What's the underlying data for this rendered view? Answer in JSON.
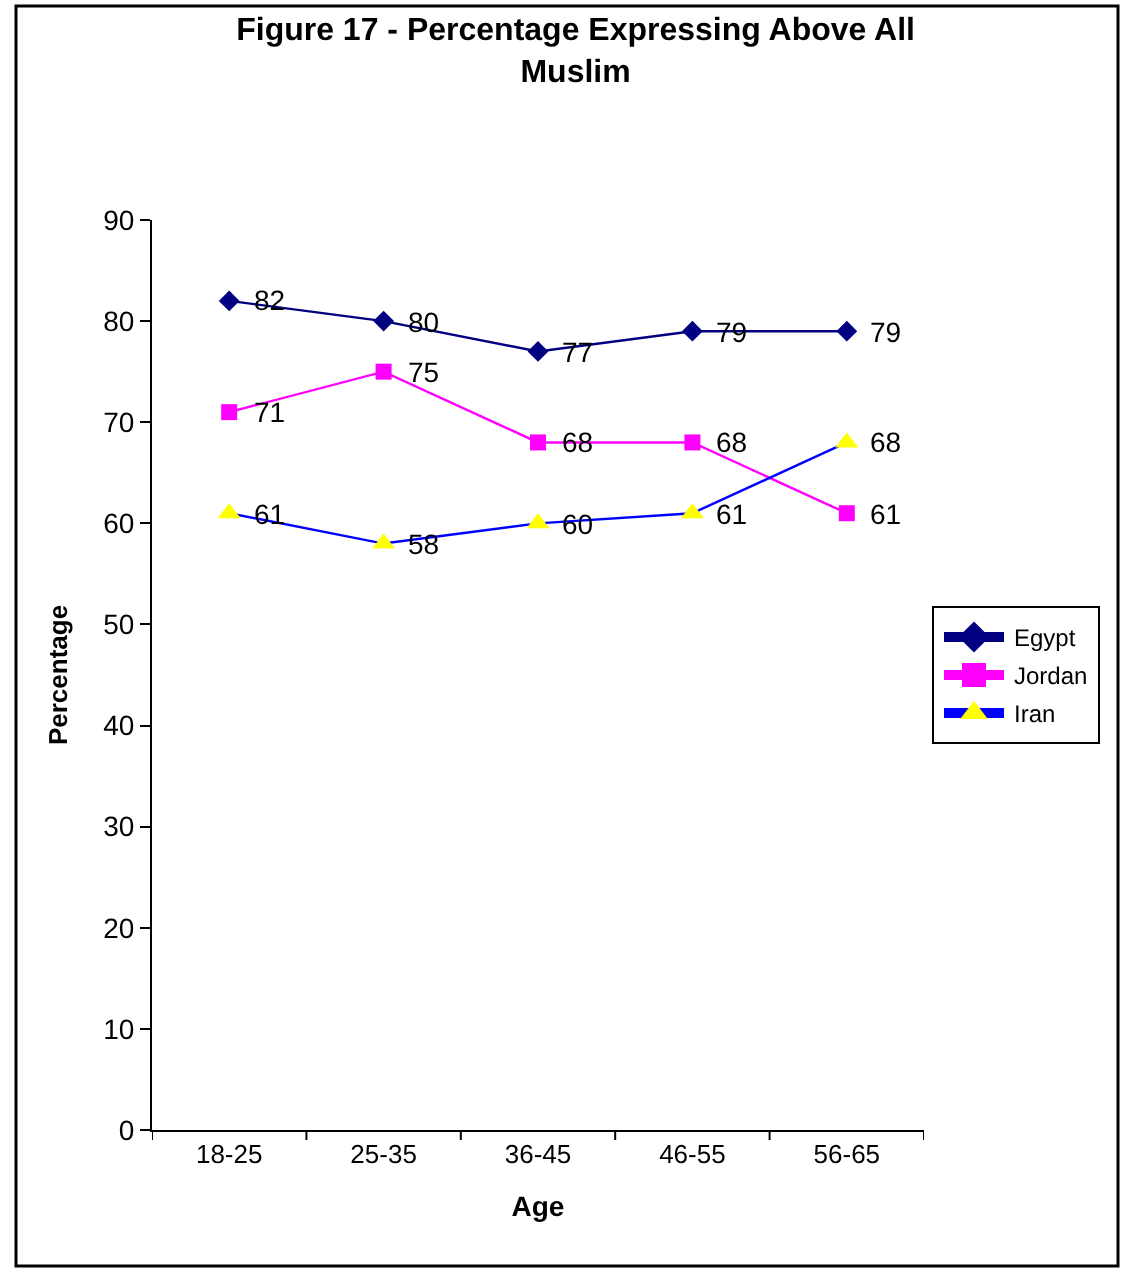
{
  "chart_data": {
    "type": "line",
    "title": "Figure 17 - Percentage Expressing Above All Muslim",
    "xlabel": "Age",
    "ylabel": "Percentage",
    "categories": [
      "18-25",
      "25-35",
      "36-45",
      "46-55",
      "56-65"
    ],
    "series": [
      {
        "name": "Egypt",
        "color": "#000080",
        "marker": "diamond",
        "values": [
          82,
          80,
          77,
          79,
          79
        ]
      },
      {
        "name": "Jordan",
        "color": "#ff00ff",
        "marker": "square",
        "values": [
          71,
          75,
          68,
          68,
          61
        ]
      },
      {
        "name": "Iran",
        "color": "#0000ff",
        "colors": [
          "#ffff00",
          "#ffff00",
          "#ffff00",
          "#ffff00",
          "#ffff00"
        ],
        "marker": "triangle",
        "values": [
          61,
          58,
          60,
          61,
          68
        ]
      }
    ],
    "ylim": [
      0,
      90
    ],
    "yticks": [
      0,
      10,
      20,
      30,
      40,
      50,
      60,
      70,
      80,
      90
    ],
    "grid": false,
    "legend": "right",
    "data_labels": true
  }
}
